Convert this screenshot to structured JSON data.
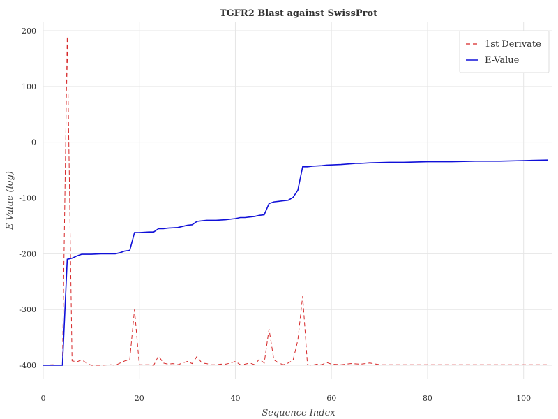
{
  "chart_data": {
    "type": "line",
    "title": "TGFR2 Blast against SwissProt",
    "xlabel": "Sequence Index",
    "ylabel": "E-Value (log)",
    "xlim": [
      0,
      106
    ],
    "ylim": [
      -425,
      215
    ],
    "xticks": [
      0,
      20,
      40,
      60,
      80,
      100
    ],
    "yticks": [
      -400,
      -300,
      -200,
      -100,
      0,
      100,
      200
    ],
    "grid": true,
    "legend_position": "top-right",
    "series": [
      {
        "name": "1st Derivate",
        "color": "#d62728",
        "style": "dashed",
        "points": [
          [
            0,
            -400
          ],
          [
            2,
            -399
          ],
          [
            3,
            -400
          ],
          [
            4,
            -399
          ],
          [
            5,
            190
          ],
          [
            6,
            -392
          ],
          [
            7,
            -394
          ],
          [
            8,
            -390
          ],
          [
            9,
            -396
          ],
          [
            10,
            -400
          ],
          [
            12,
            -400
          ],
          [
            14,
            -399
          ],
          [
            15,
            -400
          ],
          [
            16,
            -396
          ],
          [
            17,
            -392
          ],
          [
            18,
            -390
          ],
          [
            19,
            -300
          ],
          [
            20,
            -399
          ],
          [
            22,
            -399
          ],
          [
            23,
            -400
          ],
          [
            24,
            -383
          ],
          [
            25,
            -396
          ],
          [
            26,
            -398
          ],
          [
            27,
            -397
          ],
          [
            28,
            -399
          ],
          [
            29,
            -396
          ],
          [
            30,
            -393
          ],
          [
            31,
            -397
          ],
          [
            32,
            -384
          ],
          [
            33,
            -396
          ],
          [
            34,
            -397
          ],
          [
            35,
            -399
          ],
          [
            36,
            -399
          ],
          [
            37,
            -398
          ],
          [
            38,
            -398
          ],
          [
            39,
            -396
          ],
          [
            40,
            -393
          ],
          [
            41,
            -399
          ],
          [
            42,
            -398
          ],
          [
            43,
            -396
          ],
          [
            44,
            -399
          ],
          [
            45,
            -389
          ],
          [
            46,
            -396
          ],
          [
            47,
            -335
          ],
          [
            48,
            -390
          ],
          [
            49,
            -396
          ],
          [
            50,
            -399
          ],
          [
            51,
            -396
          ],
          [
            52,
            -391
          ],
          [
            53,
            -355
          ],
          [
            54,
            -276
          ],
          [
            55,
            -399
          ],
          [
            56,
            -400
          ],
          [
            57,
            -398
          ],
          [
            58,
            -399
          ],
          [
            59,
            -395
          ],
          [
            60,
            -398
          ],
          [
            62,
            -399
          ],
          [
            64,
            -397
          ],
          [
            66,
            -398
          ],
          [
            67,
            -397
          ],
          [
            68,
            -396
          ],
          [
            70,
            -399
          ],
          [
            72,
            -399
          ],
          [
            75,
            -399
          ],
          [
            80,
            -399
          ],
          [
            85,
            -399
          ],
          [
            90,
            -399
          ],
          [
            95,
            -399
          ],
          [
            100,
            -399
          ],
          [
            105,
            -399
          ]
        ]
      },
      {
        "name": "E-Value",
        "color": "#1010d8",
        "style": "solid",
        "points": [
          [
            0,
            -400
          ],
          [
            4,
            -400
          ],
          [
            5,
            -210
          ],
          [
            6,
            -208
          ],
          [
            7,
            -204
          ],
          [
            8,
            -201
          ],
          [
            10,
            -201
          ],
          [
            12,
            -200
          ],
          [
            14,
            -200
          ],
          [
            15,
            -200
          ],
          [
            16,
            -198
          ],
          [
            17,
            -195
          ],
          [
            18,
            -194
          ],
          [
            19,
            -162
          ],
          [
            20,
            -162
          ],
          [
            22,
            -161
          ],
          [
            23,
            -161
          ],
          [
            24,
            -155
          ],
          [
            25,
            -155
          ],
          [
            26,
            -154
          ],
          [
            28,
            -153
          ],
          [
            29,
            -151
          ],
          [
            30,
            -149
          ],
          [
            31,
            -148
          ],
          [
            32,
            -142
          ],
          [
            33,
            -141
          ],
          [
            34,
            -140
          ],
          [
            36,
            -140
          ],
          [
            38,
            -139
          ],
          [
            40,
            -137
          ],
          [
            41,
            -135
          ],
          [
            42,
            -135
          ],
          [
            43,
            -134
          ],
          [
            44,
            -133
          ],
          [
            45,
            -131
          ],
          [
            46,
            -130
          ],
          [
            47,
            -110
          ],
          [
            48,
            -107
          ],
          [
            49,
            -106
          ],
          [
            50,
            -105
          ],
          [
            51,
            -104
          ],
          [
            52,
            -99
          ],
          [
            53,
            -86
          ],
          [
            54,
            -44
          ],
          [
            55,
            -44
          ],
          [
            56,
            -43
          ],
          [
            58,
            -42
          ],
          [
            59,
            -41
          ],
          [
            62,
            -40
          ],
          [
            65,
            -38
          ],
          [
            66,
            -38
          ],
          [
            68,
            -37
          ],
          [
            72,
            -36
          ],
          [
            75,
            -36
          ],
          [
            80,
            -35
          ],
          [
            85,
            -35
          ],
          [
            90,
            -34
          ],
          [
            95,
            -34
          ],
          [
            100,
            -33
          ],
          [
            105,
            -32
          ]
        ]
      }
    ]
  }
}
